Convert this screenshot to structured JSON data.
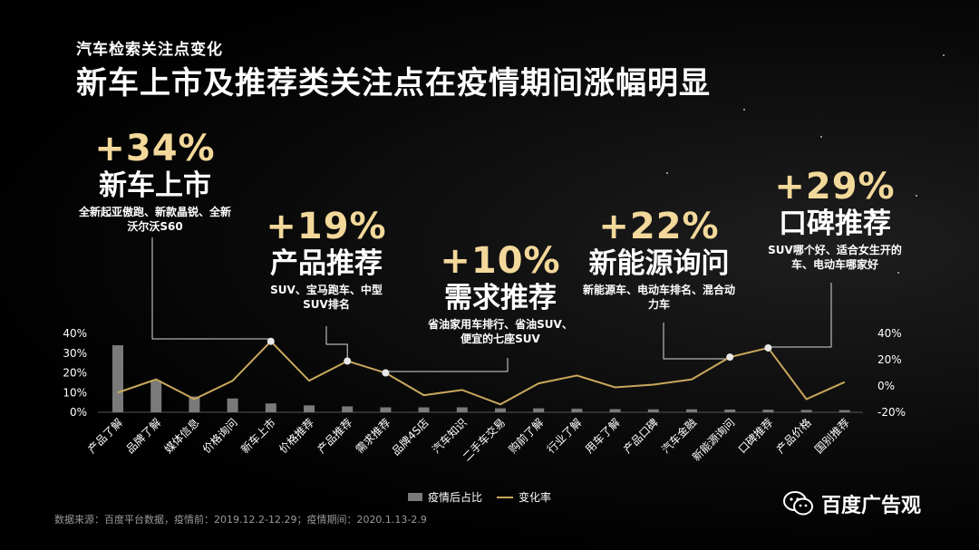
{
  "header": {
    "eyebrow": "汽车检索关注点变化",
    "title": "新车上市及推荐类关注点在疫情期间涨幅明显"
  },
  "callouts": [
    {
      "pct": "+34%",
      "name": "新车上市",
      "desc": "全新起亚傲跑、新款晶锐、全新沃尔沃S60"
    },
    {
      "pct": "+19%",
      "name": "产品推荐",
      "desc": "SUV、宝马跑车、中型SUV排名"
    },
    {
      "pct": "+10%",
      "name": "需求推荐",
      "desc": "省油家用车排行、省油SUV、便宜的七座SUV"
    },
    {
      "pct": "+22%",
      "name": "新能源询问",
      "desc": "新能源车、电动车排名、混合动力车"
    },
    {
      "pct": "+29%",
      "name": "口碑推荐",
      "desc": "SUV哪个好、适合女生开的车、电动车哪家好"
    }
  ],
  "chart_data": {
    "type": "bar+line",
    "categories": [
      "产品了解",
      "品牌了解",
      "媒体信息",
      "价格询问",
      "新车上市",
      "价格推荐",
      "产品推荐",
      "需求推荐",
      "品牌4S店",
      "汽车知识",
      "二手车交易",
      "购前了解",
      "行业了解",
      "用车了解",
      "产品口碑",
      "汽车金融",
      "新能源询问",
      "口碑推荐",
      "产品价格",
      "国别推荐"
    ],
    "series": [
      {
        "name": "疫情后占比",
        "type": "bar",
        "axis": "left",
        "values": [
          34,
          16,
          8,
          7,
          4.5,
          3.5,
          3,
          2.5,
          2.5,
          2.5,
          2,
          2,
          1.8,
          1.6,
          1.5,
          1.5,
          1.4,
          1.3,
          1.2,
          1.1
        ]
      },
      {
        "name": "变化率",
        "type": "line",
        "axis": "right",
        "values": [
          -5,
          5,
          -10,
          4,
          34,
          4,
          19,
          10,
          -7,
          -3,
          -14,
          2,
          8,
          -1,
          1,
          5,
          22,
          29,
          -10,
          3
        ]
      }
    ],
    "y_left": {
      "min": 0,
      "max": 40,
      "ticks": [
        "0%",
        "10%",
        "20%",
        "30%",
        "40%"
      ]
    },
    "y_right": {
      "min": -20,
      "max": 40,
      "ticks": [
        "-20%",
        "0%",
        "20%",
        "40%"
      ]
    },
    "highlight_indices": [
      4,
      6,
      7,
      16,
      17
    ],
    "legend": [
      "疫情后占比",
      "变化率"
    ],
    "legend_position": "bottom",
    "grid": false,
    "colors": {
      "bar": "#7a7a7a",
      "line": "#c9a85c",
      "marker": "#e8e8e8",
      "pct": "#f2d89a"
    }
  },
  "footer": {
    "source": "数据来源：百度平台数据，疫情前：2019.12.2-12.29；疫情期间：2020.1.13-2.9",
    "brand": "百度广告观",
    "brand_icon": "wechat-icon"
  }
}
